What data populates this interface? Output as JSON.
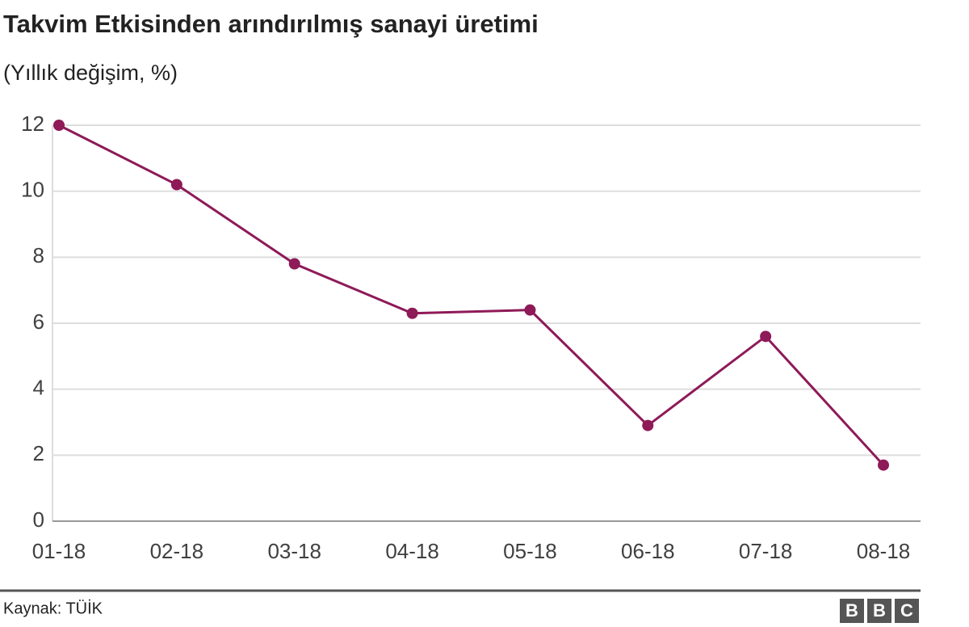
{
  "chart_data": {
    "type": "line",
    "title": "Takvim Etkisinden arındırılmış sanayi üretimi",
    "subtitle": "(Yıllık değişim, %)",
    "categories": [
      "01-18",
      "02-18",
      "03-18",
      "04-18",
      "05-18",
      "06-18",
      "07-18",
      "08-18"
    ],
    "series": [
      {
        "name": "Sanayi üretimi",
        "color": "#8e1a58",
        "values": [
          12.0,
          10.2,
          7.8,
          6.3,
          6.4,
          2.9,
          5.6,
          1.7
        ]
      }
    ],
    "ylim": [
      0,
      12
    ],
    "yticks": [
      0,
      2,
      4,
      6,
      8,
      10,
      12
    ],
    "grid": true,
    "source": "Kaynak: TÜİK",
    "logo": [
      "B",
      "B",
      "C"
    ]
  }
}
